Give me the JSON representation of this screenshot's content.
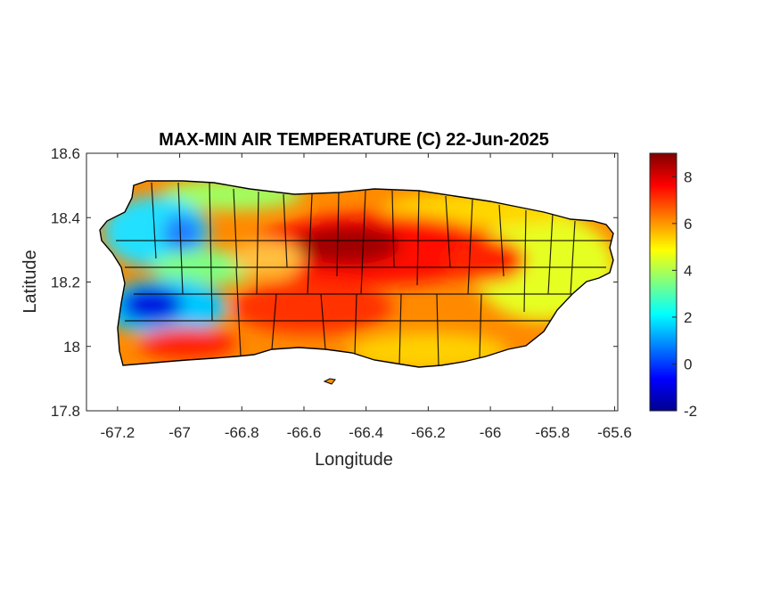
{
  "figure": {
    "title": "MAX-MIN AIR TEMPERATURE (C) 22-Jun-2025",
    "xlabel": "Longitude",
    "ylabel": "Latitude"
  },
  "chart_data": {
    "type": "heatmap",
    "title": "MAX-MIN AIR TEMPERATURE (C) 22-Jun-2025",
    "xlabel": "Longitude",
    "ylabel": "Latitude",
    "xlim": [
      -67.3,
      -65.59
    ],
    "ylim": [
      17.8,
      18.6
    ],
    "x_ticks": [
      -67.2,
      -67,
      -66.8,
      -66.6,
      -66.4,
      -66.2,
      -66,
      -65.8,
      -65.6
    ],
    "x_tick_labels": [
      "-67.2",
      "-67",
      "-66.8",
      "-66.6",
      "-66.4",
      "-66.2",
      "-66",
      "-65.8",
      "-65.6"
    ],
    "y_ticks": [
      17.8,
      18,
      18.2,
      18.4,
      18.6
    ],
    "y_tick_labels": [
      "17.8",
      "18",
      "18.2",
      "18.4",
      "18.6"
    ],
    "colormap": "jet",
    "colorbar": {
      "clim": [
        -2,
        9
      ],
      "ticks": [
        -2,
        0,
        2,
        4,
        6,
        8
      ],
      "tick_labels": [
        "-2",
        "0",
        "2",
        "4",
        "6",
        "8"
      ]
    },
    "region": "Puerto Rico",
    "value_min_approx": -1.5,
    "value_max_approx": 9,
    "features": [
      {
        "name": "central-mountain-max",
        "lon": -66.5,
        "lat": 18.29,
        "value": 8.6
      },
      {
        "name": "eastern-interior-max",
        "lon": -66.02,
        "lat": 18.24,
        "value": 8.0
      },
      {
        "name": "southwest-min",
        "lon": -67.1,
        "lat": 18.14,
        "value": -1.2
      },
      {
        "name": "northwest-min",
        "lon": -67.02,
        "lat": 18.35,
        "value": 1.5
      }
    ],
    "grid": false
  }
}
